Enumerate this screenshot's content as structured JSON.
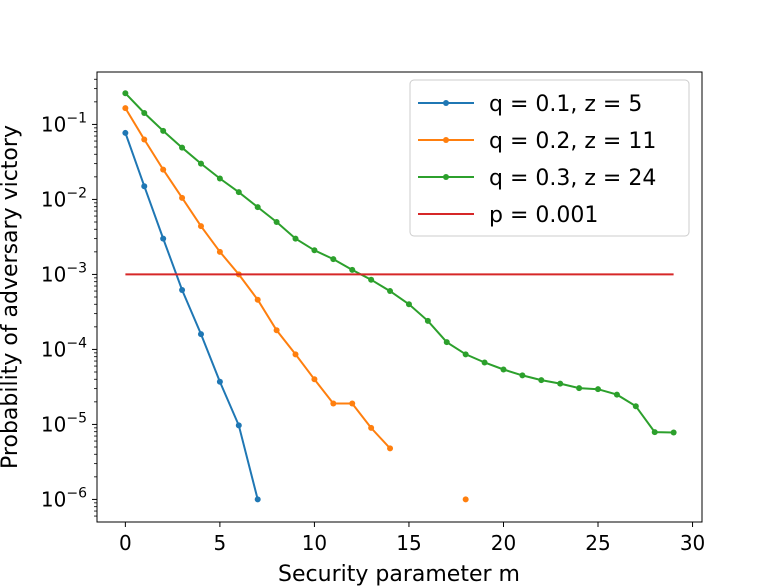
{
  "chart_data": {
    "type": "line",
    "xlabel": "Security parameter m",
    "ylabel": "Probability of adversary victory",
    "xlim": [
      -1.5,
      30.5
    ],
    "ylim": [
      5e-07,
      0.5
    ],
    "y_scale": "log",
    "grid": false,
    "legend_position": "top-right",
    "x_ticks": [
      0,
      5,
      10,
      15,
      20,
      25,
      30
    ],
    "x_tick_labels": [
      "0",
      "5",
      "10",
      "15",
      "20",
      "25",
      "30"
    ],
    "y_ticks": [
      1e-06,
      1e-05,
      0.0001,
      0.001,
      0.01,
      0.1
    ],
    "y_tick_labels": [
      {
        "base": "10",
        "exp": "−6"
      },
      {
        "base": "10",
        "exp": "−5"
      },
      {
        "base": "10",
        "exp": "−4"
      },
      {
        "base": "10",
        "exp": "−3"
      },
      {
        "base": "10",
        "exp": "−2"
      },
      {
        "base": "10",
        "exp": "−1"
      }
    ],
    "series": [
      {
        "name": "q = 0.1, z = 5",
        "color": "#1f77b4",
        "markers": true,
        "x": [
          0,
          1,
          2,
          3,
          4,
          5,
          6,
          7
        ],
        "y": [
          0.077,
          0.015,
          0.003,
          0.00062,
          0.00016,
          3.7e-05,
          9.7e-06,
          1e-06
        ]
      },
      {
        "name": "q = 0.2, z = 11",
        "color": "#ff7f0e",
        "markers": true,
        "x": [
          0,
          1,
          2,
          3,
          4,
          5,
          6,
          7,
          8,
          9,
          10,
          11,
          12,
          13,
          14,
          18
        ],
        "y": [
          0.165,
          0.063,
          0.025,
          0.0105,
          0.0044,
          0.002,
          0.001,
          0.00046,
          0.00018,
          8.6e-05,
          4e-05,
          1.9e-05,
          1.9e-05,
          9e-06,
          4.8e-06,
          1e-06
        ],
        "breaks_before": [
          15
        ]
      },
      {
        "name": "q = 0.3, z = 24",
        "color": "#2ca02c",
        "markers": true,
        "x": [
          0,
          1,
          2,
          3,
          4,
          5,
          6,
          7,
          8,
          9,
          10,
          11,
          12,
          13,
          14,
          15,
          16,
          17,
          18,
          19,
          20,
          21,
          22,
          23,
          24,
          25,
          26,
          27,
          28,
          29
        ],
        "y": [
          0.26,
          0.142,
          0.082,
          0.049,
          0.03,
          0.019,
          0.0125,
          0.0079,
          0.005,
          0.003,
          0.0021,
          0.0016,
          0.00115,
          0.00085,
          0.0006,
          0.0004,
          0.00024,
          0.000125,
          8.6e-05,
          6.7e-05,
          5.4e-05,
          4.5e-05,
          3.9e-05,
          3.5e-05,
          3.05e-05,
          2.95e-05,
          2.5e-05,
          1.75e-05,
          7.9e-06,
          7.8e-06
        ]
      },
      {
        "name": "p = 0.001",
        "color": "#d62728",
        "markers": false,
        "x": [
          0,
          29
        ],
        "y": [
          0.001,
          0.001
        ]
      }
    ]
  }
}
